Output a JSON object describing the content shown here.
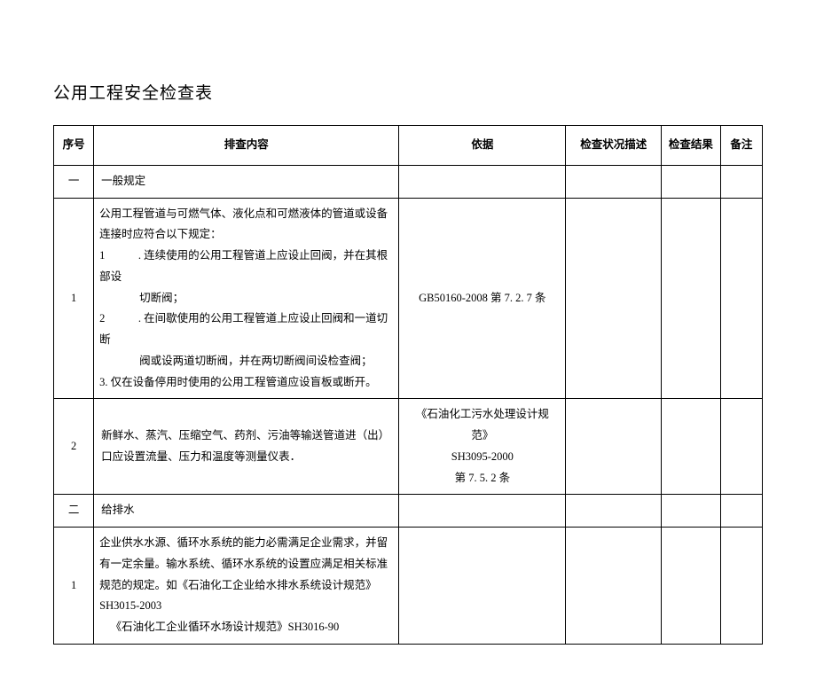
{
  "title": "公用工程安全检查表",
  "headers": {
    "seq": "序号",
    "content": "排查内容",
    "basis": "依据",
    "status": "检查状况描述",
    "result": "检查结果",
    "note": "备注"
  },
  "rows": {
    "r1_seq": "一",
    "r1_content": "一般规定",
    "r2_seq": "1",
    "r2_l1": "公用工程管道与可燃气体、液化点和可燃液体的管道或设备连接时应符合以下规定：",
    "r2_l2": "1　　　. 连续使用的公用工程管道上应设止回阀，并在其根部设",
    "r2_l2b": "切断阀；",
    "r2_l3": "2　　　. 在间歇使用的公用工程管道上应设止回阀和一道切断",
    "r2_l3b": "阀或设两道切断阀，并在两切断阀间设检查阀；",
    "r2_l4": "3. 仅在设备停用时使用的公用工程管道应设盲板或断开。",
    "r2_basis": "GB50160-2008 第 7. 2. 7 条",
    "r3_seq": "2",
    "r3_content": "新鲜水、蒸汽、压缩空气、药剂、污油等输送管道进（出）口应设置流量、压力和温度等测量仪表．",
    "r3_basis_l1": "《石油化工污水处理设计规范》",
    "r3_basis_l2": "SH3095-2000",
    "r3_basis_l3": "第 7. 5. 2 条",
    "r4_seq": "二",
    "r4_content": "给排水",
    "r5_seq": "1",
    "r5_l1": "企业供水水源、循环水系统的能力必需满足企业需求，并留有一定余量。输水系统、循环水系统的设置应满足相关标准规范的规定。如《石油化工企业给水排水系统设计规范》SH3015-2003",
    "r5_l2": "《石油化工企业循环水场设计规范》SH3016-90"
  }
}
